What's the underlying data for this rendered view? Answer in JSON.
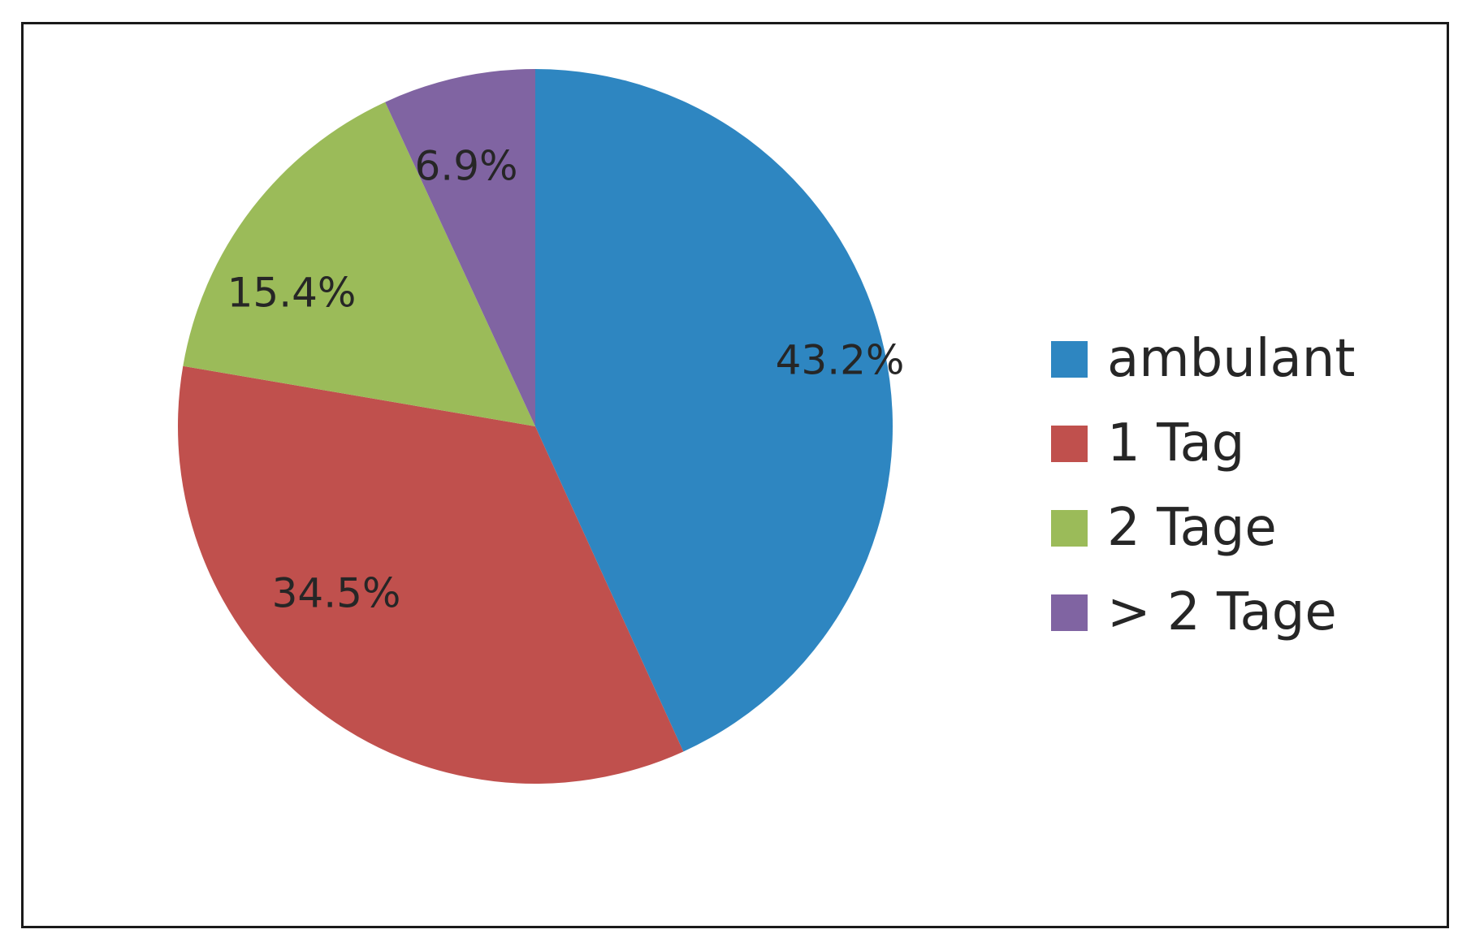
{
  "chart_data": {
    "type": "pie",
    "start_angle_deg": 0,
    "direction": "clockwise",
    "slices": [
      {
        "label": "ambulant",
        "value": 43.2,
        "display": "43.2%",
        "color": "#2E86C1"
      },
      {
        "label": "1 Tag",
        "value": 34.5,
        "display": "34.5%",
        "color": "#C0504D"
      },
      {
        "label": "2 Tage",
        "value": 15.4,
        "display": "15.4%",
        "color": "#9BBB59"
      },
      {
        "label": "> 2 Tage",
        "value": 6.9,
        "display": "6.9%",
        "color": "#8064A2"
      }
    ],
    "legend_position": "right"
  }
}
